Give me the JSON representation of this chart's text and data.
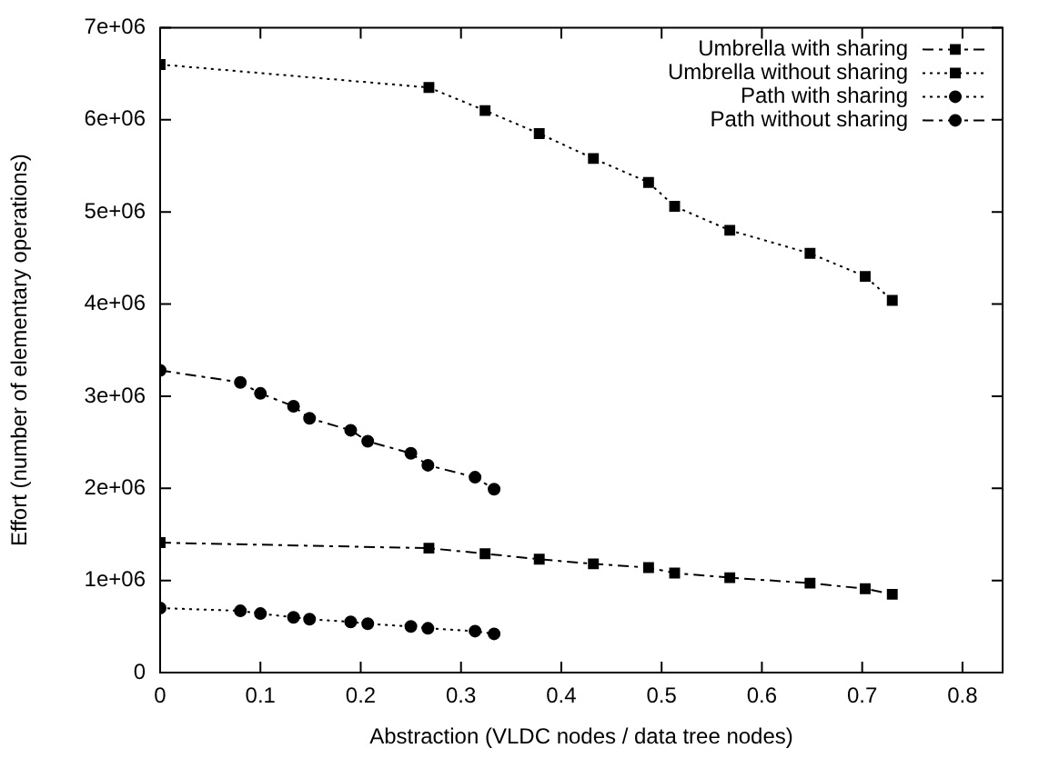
{
  "chart_data": {
    "type": "line",
    "xlabel": "Abstraction (VLDC nodes / data tree nodes)",
    "ylabel": "Effort (number of elementary operations)",
    "xlim": [
      0,
      0.84
    ],
    "xticks": [
      0,
      0.1,
      0.2,
      0.3,
      0.4,
      0.5,
      0.6,
      0.7,
      0.8
    ],
    "ylim": [
      0,
      7000000
    ],
    "yticks": [
      0,
      {
        "value": 1000000,
        "label": "1e+06"
      },
      {
        "value": 2000000,
        "label": "2e+06"
      },
      {
        "value": 3000000,
        "label": "3e+06"
      },
      {
        "value": 4000000,
        "label": "4e+06"
      },
      {
        "value": 5000000,
        "label": "5e+06"
      },
      {
        "value": 6000000,
        "label": "6e+06"
      },
      {
        "value": 7000000,
        "label": "7e+06"
      }
    ],
    "legend": "top right",
    "series": [
      {
        "name": "Umbrella with sharing",
        "color": "#000000",
        "marker": "square",
        "line_style": "dashed",
        "x": [
          0,
          0.268,
          0.324,
          0.378,
          0.432,
          0.487,
          0.513,
          0.568,
          0.648,
          0.703,
          0.73
        ],
        "values": [
          1410000,
          1350000,
          1290000,
          1230000,
          1180000,
          1140000,
          1080000,
          1030000,
          970000,
          910000,
          850000
        ]
      },
      {
        "name": "Umbrella without sharing",
        "color": "#000000",
        "marker": "square",
        "line_style": "dotted",
        "x": [
          0,
          0.268,
          0.324,
          0.378,
          0.432,
          0.487,
          0.513,
          0.568,
          0.648,
          0.703,
          0.73
        ],
        "values": [
          6600000,
          6350000,
          6100000,
          5850000,
          5580000,
          5320000,
          5060000,
          4800000,
          4550000,
          4300000,
          4040000
        ]
      },
      {
        "name": "Path with sharing",
        "color": "#000000",
        "marker": "circle",
        "line_style": "dotted",
        "x": [
          0,
          0.08,
          0.1,
          0.133,
          0.149,
          0.19,
          0.207,
          0.25,
          0.267,
          0.314,
          0.333
        ],
        "values": [
          700000,
          670000,
          640000,
          600000,
          580000,
          550000,
          530000,
          500000,
          480000,
          450000,
          420000
        ]
      },
      {
        "name": "Path without sharing",
        "color": "#000000",
        "marker": "circle",
        "line_style": "dashed",
        "x": [
          0,
          0.08,
          0.1,
          0.133,
          0.149,
          0.19,
          0.207,
          0.25,
          0.267,
          0.314,
          0.333
        ],
        "values": [
          3280000,
          3150000,
          3030000,
          2890000,
          2760000,
          2630000,
          2510000,
          2380000,
          2250000,
          2120000,
          1990000
        ]
      }
    ]
  }
}
